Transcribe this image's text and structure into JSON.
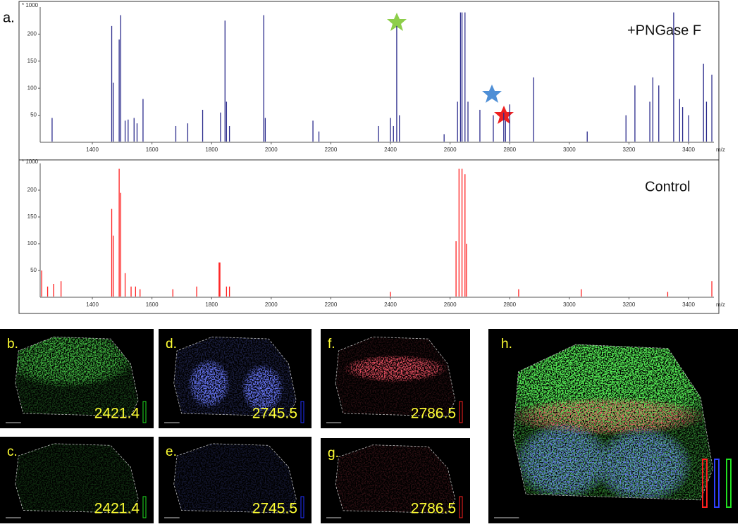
{
  "figure_label": "a.",
  "chart_data": [
    {
      "type": "stem",
      "title": "+PNGase F",
      "y_unit": "* 1000",
      "x_label": "m/z",
      "color": "#2b2b8c",
      "xlim": [
        1225,
        3485
      ],
      "ylim": [
        0,
        250
      ],
      "xticks": [
        1400,
        1600,
        1800,
        2000,
        2200,
        2400,
        2600,
        2800,
        3000,
        3200,
        3400
      ],
      "yticks": [
        50,
        100,
        150,
        200
      ],
      "x": [
        1265,
        1465,
        1470,
        1490,
        1495,
        1510,
        1520,
        1540,
        1550,
        1570,
        1680,
        1720,
        1770,
        1830,
        1845,
        1850,
        1860,
        1975,
        1980,
        2140,
        2160,
        2360,
        2400,
        2410,
        2421,
        2430,
        2580,
        2625,
        2635,
        2640,
        2650,
        2660,
        2700,
        2745,
        2780,
        2786,
        2800,
        2880,
        3060,
        3190,
        3220,
        3270,
        3280,
        3300,
        3350,
        3370,
        3380,
        3400,
        3450,
        3460,
        3478
      ],
      "values": [
        45,
        215,
        110,
        190,
        235,
        40,
        42,
        45,
        35,
        80,
        30,
        35,
        60,
        55,
        225,
        75,
        30,
        235,
        45,
        40,
        20,
        30,
        45,
        30,
        215,
        50,
        15,
        75,
        240,
        240,
        240,
        75,
        60,
        50,
        55,
        40,
        70,
        120,
        20,
        50,
        105,
        75,
        120,
        105,
        240,
        80,
        65,
        50,
        145,
        75,
        125
      ]
    },
    {
      "type": "stem",
      "title": "Control",
      "y_unit": "* 1000",
      "x_label": "m/z",
      "color": "#ff2020",
      "xlim": [
        1225,
        3485
      ],
      "ylim": [
        0,
        250
      ],
      "xticks": [
        1400,
        1600,
        1800,
        2000,
        2200,
        2400,
        2600,
        2800,
        3000,
        3200,
        3400
      ],
      "yticks": [
        50,
        100,
        150,
        200
      ],
      "x": [
        1230,
        1250,
        1270,
        1295,
        1465,
        1470,
        1490,
        1495,
        1510,
        1530,
        1545,
        1560,
        1670,
        1750,
        1825,
        1828,
        1850,
        1860,
        2400,
        2620,
        2630,
        2640,
        2650,
        2655,
        2830,
        3040,
        3330,
        3478
      ],
      "values": [
        50,
        20,
        25,
        30,
        165,
        115,
        240,
        195,
        45,
        20,
        20,
        15,
        15,
        20,
        65,
        65,
        20,
        20,
        10,
        105,
        240,
        240,
        230,
        100,
        15,
        15,
        10,
        30
      ]
    }
  ],
  "panels": [
    {
      "label": "b.",
      "mz": "2421.4"
    },
    {
      "label": "d.",
      "mz": "2745.5"
    },
    {
      "label": "f.",
      "mz": "2786.5"
    },
    {
      "label": "c.",
      "mz": "2421.4"
    },
    {
      "label": "e.",
      "mz": "2745.5"
    },
    {
      "label": "g.",
      "mz": "2786.5"
    },
    {
      "label": "h."
    }
  ]
}
